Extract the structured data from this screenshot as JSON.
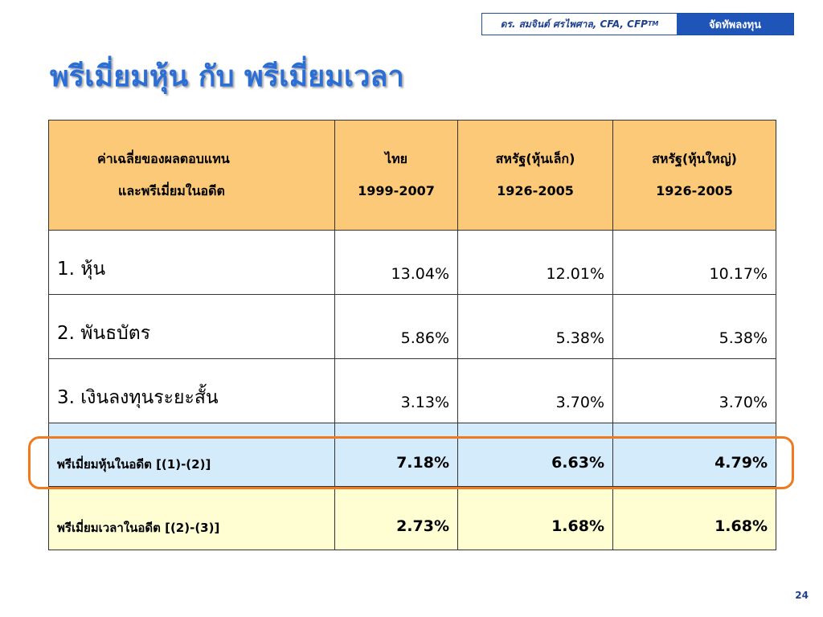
{
  "header": {
    "author": "ดร. สมจินต์ ศรไพศาล, CFA, CFP",
    "trademark": "TM",
    "section": "จัดทัพลงทุน"
  },
  "title": "พรีเมี่ยมหุ้น กับ พรีเมี่ยมเวลา",
  "table": {
    "columns": [
      {
        "line1": "ค่าเฉลี่ยของผลตอบแทน",
        "line2": "และพรีเมี่ยมในอดีต"
      },
      {
        "line1": "ไทย",
        "line2": "1999-2007"
      },
      {
        "line1": "สหรัฐ(หุ้นเล็ก)",
        "line2": "1926-2005"
      },
      {
        "line1": "สหรัฐ(หุ้นใหญ่)",
        "line2": "1926-2005"
      }
    ],
    "rows": [
      {
        "label": "1. หุ้น",
        "values": [
          "13.04%",
          "12.01%",
          "10.17%"
        ]
      },
      {
        "label": "2. พันธบัตร",
        "values": [
          "5.86%",
          "5.38%",
          "5.38%"
        ]
      },
      {
        "label": "3. เงินลงทุนระยะสั้น",
        "values": [
          "3.13%",
          "3.70%",
          "3.70%"
        ]
      }
    ],
    "premiums": [
      {
        "label": "พรีเมี่ยมหุ้นในอดีต [(1)-(2)]",
        "values": [
          "7.18%",
          "6.63%",
          "4.79%"
        ]
      },
      {
        "label": "พรีเมี่ยมเวลาในอดีต [(2)-(3)]",
        "values": [
          "2.73%",
          "1.68%",
          "1.68%"
        ]
      }
    ]
  },
  "page_number": "24",
  "colors": {
    "title": "#2b6fd6",
    "header_fill": "#fcc978",
    "equity_premium_fill": "#d3ebfb",
    "time_premium_fill": "#fefed2",
    "highlight": "#f07a20",
    "section_tag": "#1f54b8"
  }
}
